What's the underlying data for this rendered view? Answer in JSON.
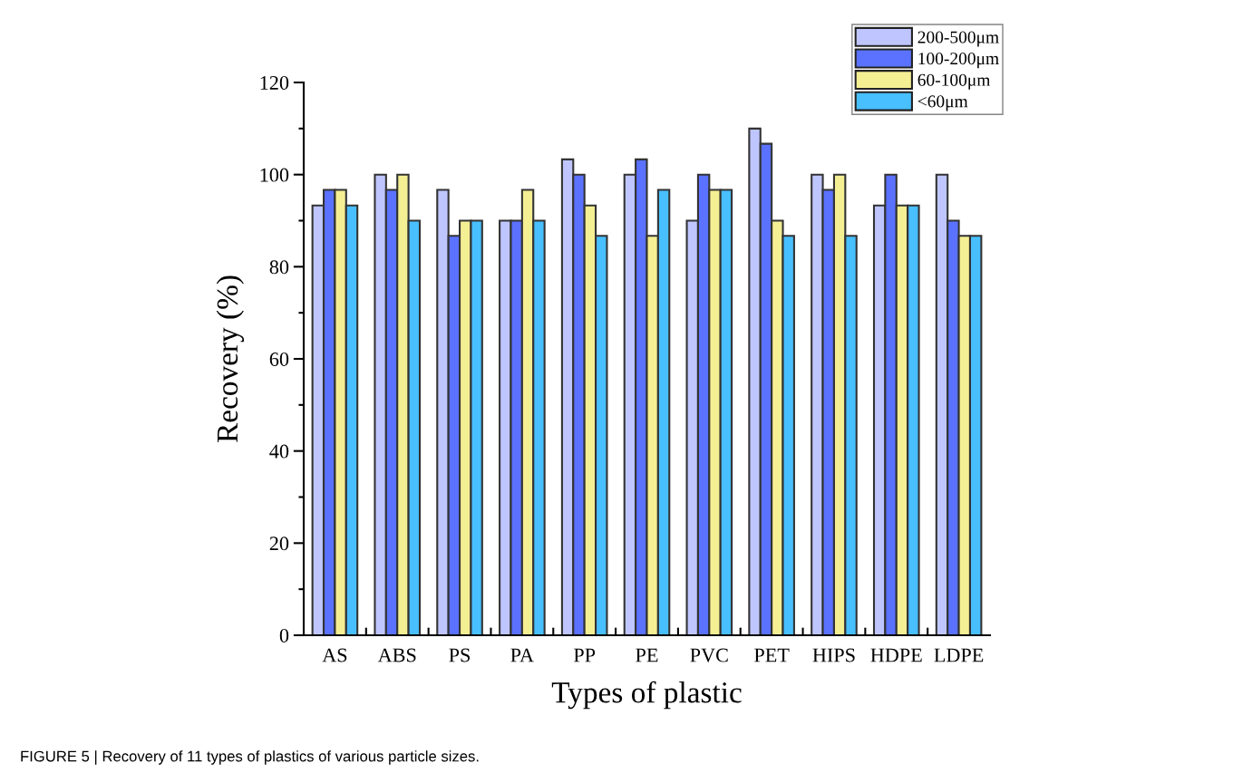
{
  "chart_data": {
    "type": "bar",
    "xlabel": "Types of plastic",
    "ylabel": "Recovery (%)",
    "categories": [
      "AS",
      "ABS",
      "PS",
      "PA",
      "PP",
      "PE",
      "PVC",
      "PET",
      "HIPS",
      "HDPE",
      "LDPE"
    ],
    "series": [
      {
        "name": "200-500μm",
        "color": "#bfc6ff",
        "values": [
          93.3,
          100,
          96.7,
          90,
          103.3,
          100,
          90,
          110,
          100,
          93.3,
          100
        ]
      },
      {
        "name": "100-200μm",
        "color": "#5a72ff",
        "values": [
          96.7,
          96.7,
          86.7,
          90,
          100,
          103.3,
          100,
          106.7,
          96.7,
          100,
          90
        ]
      },
      {
        "name": "60-100μm",
        "color": "#f5ef94",
        "values": [
          96.7,
          100,
          90,
          96.7,
          93.3,
          86.7,
          96.7,
          90,
          100,
          93.3,
          86.7
        ]
      },
      {
        "name": "<60μm",
        "color": "#48bfff",
        "values": [
          93.3,
          90,
          90,
          90,
          86.7,
          96.7,
          96.7,
          86.7,
          86.7,
          93.3,
          86.7
        ]
      }
    ],
    "ylim": [
      0,
      120
    ],
    "yticks": [
      0,
      20,
      40,
      60,
      80,
      100,
      120
    ],
    "legend": "top right",
    "grid": false,
    "annotations": [
      "FIGURE 5 | Recovery of 11 types of plastics of various particle sizes."
    ]
  }
}
